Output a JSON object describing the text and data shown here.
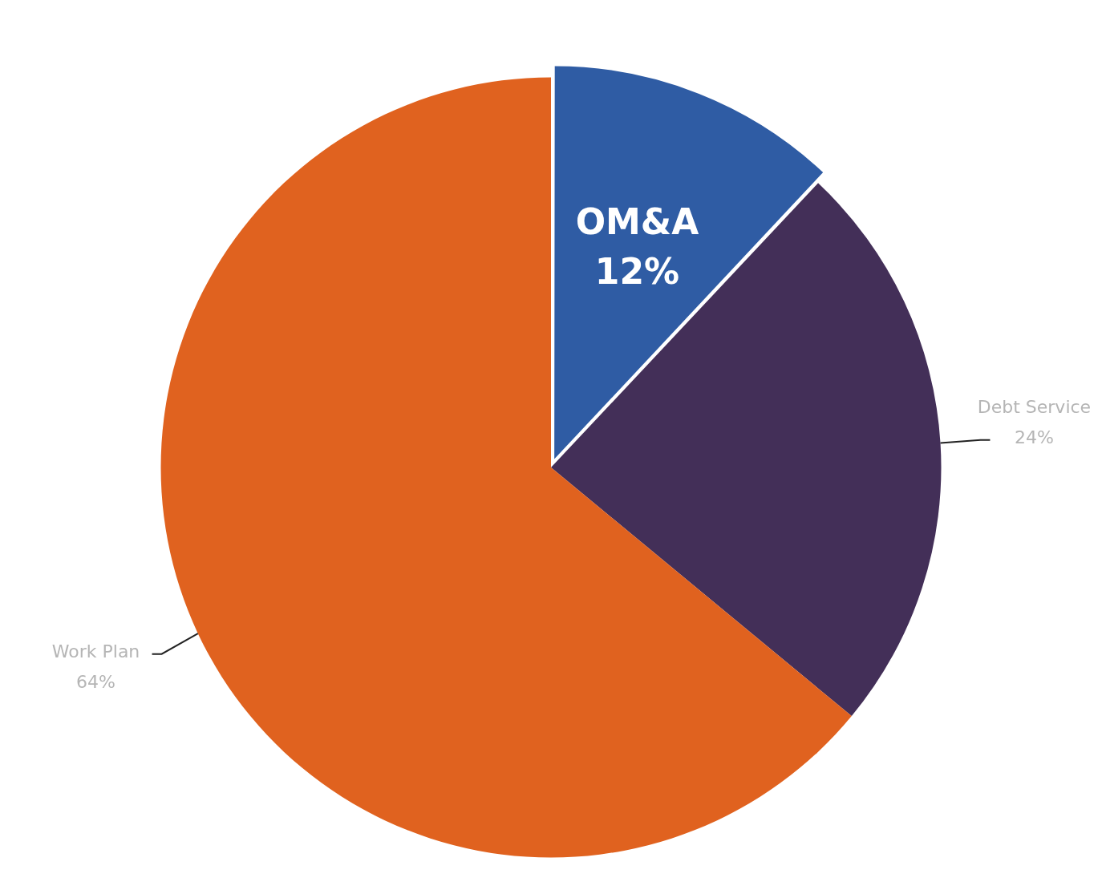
{
  "chart_data": {
    "type": "pie",
    "categories": [
      "OM&A",
      "Debt Service",
      "Work Plan"
    ],
    "values": [
      12,
      24,
      64
    ],
    "colors": [
      "#2f5ca4",
      "#432f58",
      "#e0621f"
    ],
    "value_labels": [
      "12%",
      "24%",
      "64%"
    ],
    "legend": false
  }
}
